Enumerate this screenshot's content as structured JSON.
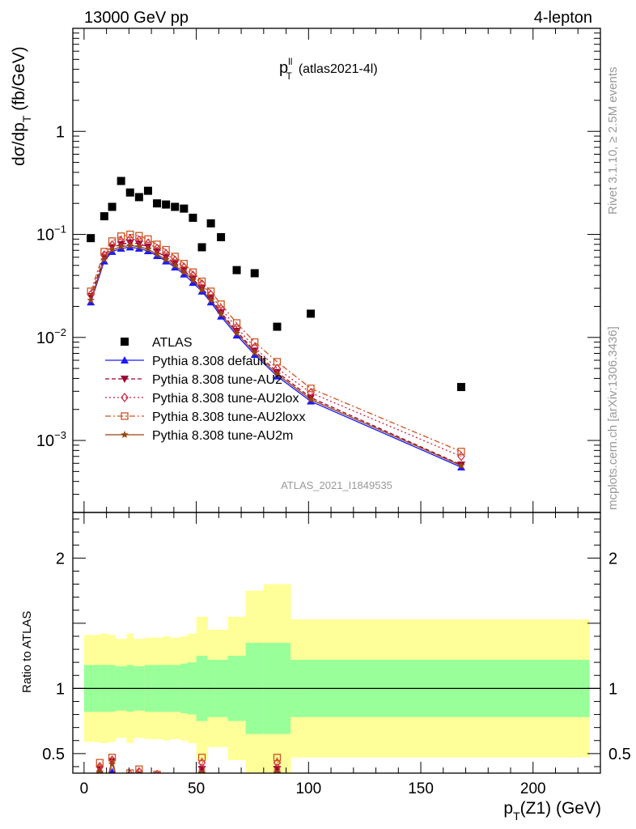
{
  "header": {
    "left": "13000 GeV pp",
    "right": "4-lepton"
  },
  "plot_title": {
    "main": "p",
    "sup": "ll",
    "sub": "T",
    "suffix": "(atlas2021-4l)"
  },
  "side_labels": {
    "rivet": "Rivet 3.1.10, ≥ 2.5M events",
    "mcplots": "mcplots.cern.ch [arXiv:1306.3436]"
  },
  "watermark": "ATLAS_2021_I1849535",
  "y_label_main": {
    "a": "dσ/dp",
    "sub": "T",
    "b": " (fb/GeV)"
  },
  "y_label_ratio": "Ratio to ATLAS",
  "x_label": {
    "a": "p",
    "sub": "T",
    "b": "(Z1) (GeV)"
  },
  "colors": {
    "atlas": "#000000",
    "default": "#1a1aff",
    "au2": "#990033",
    "au2lox": "#cc2244",
    "au2loxx": "#cc5522",
    "au2m": "#994411",
    "band_inner": "#99ff99",
    "band_outer": "#ffff99"
  },
  "chart_data": [
    {
      "type": "scatter",
      "title": "",
      "xlabel": "pT(Z1) (GeV)",
      "ylabel": "dσ/dpT (fb/GeV)",
      "xlim": [
        -5,
        230
      ],
      "ylim": [
        0.0002,
        10
      ],
      "yscale": "log",
      "y_ticks": [
        {
          "v": 1,
          "m": "1",
          "e": ""
        },
        {
          "v": 0.1,
          "m": "10",
          "e": "−1"
        },
        {
          "v": 0.01,
          "m": "10",
          "e": "−2"
        },
        {
          "v": 0.001,
          "m": "10",
          "e": "−3"
        }
      ],
      "legend_position": "bottom-left",
      "x": [
        3,
        9,
        12.5,
        16.5,
        20.5,
        24.5,
        28.5,
        32.5,
        36.5,
        40.5,
        44.5,
        48.5,
        52.5,
        56.5,
        61,
        68,
        76,
        86,
        101,
        168
      ],
      "series": [
        {
          "name": "ATLAS",
          "key": "atlas",
          "marker": "square",
          "line": "none",
          "values": [
            0.092,
            0.15,
            0.185,
            0.33,
            0.255,
            0.23,
            0.265,
            0.2,
            0.195,
            0.185,
            0.178,
            0.145,
            0.075,
            0.128,
            0.094,
            0.045,
            0.042,
            0.0127,
            0.017,
            0.0033
          ]
        },
        {
          "name": "Pythia 8.308 default",
          "key": "default",
          "marker": "triangle-up",
          "line": "solid",
          "values": [
            0.022,
            0.055,
            0.068,
            0.073,
            0.075,
            0.073,
            0.069,
            0.062,
            0.055,
            0.048,
            0.041,
            0.034,
            0.028,
            0.022,
            0.016,
            0.0105,
            0.0068,
            0.0042,
            0.0024,
            0.00055
          ]
        },
        {
          "name": "Pythia 8.308 tune-AU2",
          "key": "au2",
          "marker": "triangle-down",
          "line": "dashed",
          "values": [
            0.025,
            0.06,
            0.075,
            0.08,
            0.083,
            0.081,
            0.076,
            0.068,
            0.06,
            0.052,
            0.045,
            0.037,
            0.03,
            0.024,
            0.0175,
            0.0115,
            0.0074,
            0.0046,
            0.0026,
            0.00058
          ]
        },
        {
          "name": "Pythia 8.308 tune-AU2lox",
          "key": "au2lox",
          "marker": "diamond",
          "line": "dotted",
          "values": [
            0.026,
            0.063,
            0.079,
            0.086,
            0.09,
            0.088,
            0.082,
            0.073,
            0.065,
            0.056,
            0.048,
            0.04,
            0.033,
            0.026,
            0.019,
            0.0125,
            0.008,
            0.005,
            0.0029,
            0.0007
          ]
        },
        {
          "name": "Pythia 8.308 tune-AU2loxx",
          "key": "au2loxx",
          "marker": "open-square",
          "line": "dashdot",
          "values": [
            0.028,
            0.068,
            0.086,
            0.096,
            0.1,
            0.097,
            0.09,
            0.08,
            0.071,
            0.061,
            0.052,
            0.043,
            0.035,
            0.028,
            0.021,
            0.0138,
            0.009,
            0.0058,
            0.0032,
            0.00078
          ]
        },
        {
          "name": "Pythia 8.308 tune-AU2m",
          "key": "au2m",
          "marker": "star",
          "line": "solid",
          "values": [
            0.023,
            0.057,
            0.071,
            0.076,
            0.078,
            0.076,
            0.072,
            0.064,
            0.057,
            0.05,
            0.043,
            0.036,
            0.029,
            0.023,
            0.0168,
            0.011,
            0.0071,
            0.0044,
            0.0025,
            0.00057
          ]
        }
      ]
    },
    {
      "type": "area",
      "title": "",
      "xlabel": "pT(Z1) (GeV)",
      "ylabel": "Ratio to ATLAS",
      "xlim": [
        -5,
        230
      ],
      "ylim": [
        0.35,
        2.35
      ],
      "y_ticks": [
        {
          "v": 2,
          "l": "2"
        },
        {
          "v": 1,
          "l": "1"
        },
        {
          "v": 0.5,
          "l": "0.5"
        }
      ],
      "x_ticks": [
        {
          "v": 0,
          "l": "0"
        },
        {
          "v": 50,
          "l": "50"
        },
        {
          "v": 100,
          "l": "100"
        },
        {
          "v": 150,
          "l": "150"
        },
        {
          "v": 200,
          "l": "200"
        }
      ],
      "bin_edges": [
        0,
        7,
        11,
        14,
        19,
        22,
        27,
        30,
        35,
        38,
        43,
        46,
        50,
        55,
        58,
        64,
        72,
        80,
        92,
        110,
        225
      ],
      "band_inner": {
        "lo": [
          0.82,
          0.82,
          0.82,
          0.83,
          0.82,
          0.83,
          0.82,
          0.82,
          0.82,
          0.82,
          0.81,
          0.8,
          0.75,
          0.78,
          0.78,
          0.75,
          0.65,
          0.65,
          0.78,
          0.78
        ],
        "hi": [
          1.18,
          1.18,
          1.18,
          1.17,
          1.18,
          1.17,
          1.18,
          1.18,
          1.18,
          1.18,
          1.19,
          1.2,
          1.25,
          1.22,
          1.22,
          1.25,
          1.35,
          1.35,
          1.22,
          1.22
        ]
      },
      "band_outer": {
        "lo": [
          0.59,
          0.58,
          0.59,
          0.62,
          0.58,
          0.62,
          0.61,
          0.61,
          0.6,
          0.61,
          0.6,
          0.58,
          0.45,
          0.55,
          0.55,
          0.45,
          0.25,
          0.2,
          0.47,
          0.47
        ],
        "hi": [
          1.41,
          1.42,
          1.41,
          1.38,
          1.42,
          1.38,
          1.39,
          1.39,
          1.4,
          1.39,
          1.4,
          1.42,
          1.55,
          1.45,
          1.45,
          1.55,
          1.75,
          1.8,
          1.53,
          1.53
        ]
      },
      "reference_line": 1,
      "ratio_points": {
        "x": [
          7,
          12.5,
          20.5,
          24.5,
          32.5,
          52.5,
          86
        ],
        "default": [
          0.3,
          0.36,
          0.3,
          0.32,
          0.33,
          0.33,
          0.33
        ],
        "au2": [
          0.38,
          0.44,
          0.33,
          0.34,
          0.33,
          0.38,
          0.38
        ],
        "au2lox": [
          0.4,
          0.45,
          0.34,
          0.36,
          0.34,
          0.43,
          0.43
        ],
        "au2loxx": [
          0.43,
          0.47,
          0.35,
          0.38,
          0.34,
          0.47,
          0.47
        ],
        "au2m": [
          0.36,
          0.42,
          0.31,
          0.33,
          0.33,
          0.35,
          0.35
        ]
      }
    }
  ]
}
